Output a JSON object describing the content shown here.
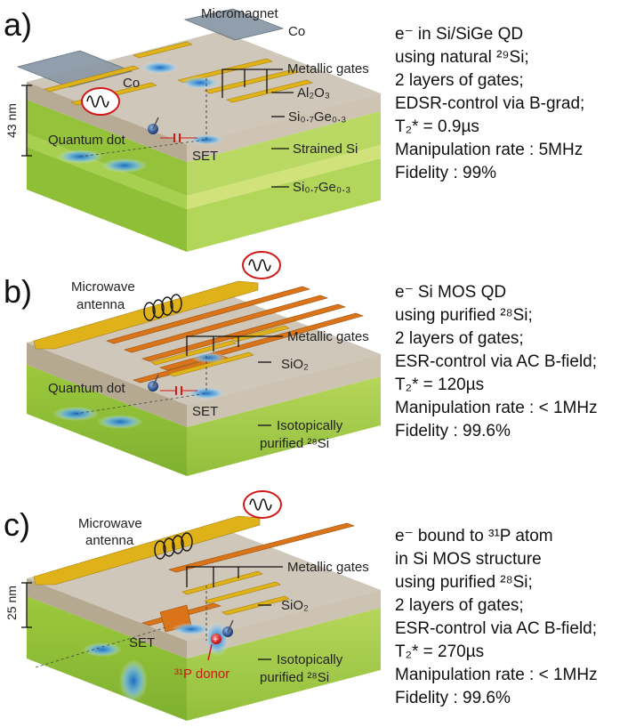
{
  "panels": {
    "a": {
      "letter": "a)",
      "labels": {
        "micromagnet": "Micromagnet",
        "co_right": "Co",
        "co_left": "Co",
        "metallic_gates": "Metallic gates",
        "al2o3": "Al₂O₃",
        "sige_top": "Si₀.₇Ge₀.₃",
        "strained_si": "Strained Si",
        "sige_bottom": "Si₀.₇Ge₀.₃",
        "quantum_dot": "Quantum dot",
        "set": "SET",
        "thickness": "43 nm"
      },
      "desc": [
        "e⁻ in Si/SiGe QD",
        "using natural ²⁹Si;",
        "2 layers of gates;",
        "EDSR-control via B-grad;",
        "T₂* = 0.9µs",
        "Manipulation rate : 5MHz",
        "Fidelity : 99%"
      ]
    },
    "b": {
      "letter": "b)",
      "labels": {
        "microwave": "Microwave",
        "antenna": "antenna",
        "metallic_gates": "Metallic gates",
        "sio2": "SiO₂",
        "quantum_dot": "Quantum dot",
        "set": "SET",
        "isotopically": "Isotopically",
        "purified": "purified ²⁸Si"
      },
      "desc": [
        "e⁻ Si MOS QD",
        "using purified ²⁸Si;",
        "2 layers of gates;",
        "ESR-control via AC B-field;",
        "T₂* = 120µs",
        "Manipulation rate : < 1MHz",
        "Fidelity : 99.6%"
      ]
    },
    "c": {
      "letter": "c)",
      "labels": {
        "microwave": "Microwave",
        "antenna": "antenna",
        "metallic_gates": "Metallic gates",
        "sio2": "SiO₂",
        "set": "SET",
        "p_donor": "³¹P donor",
        "isotopically": "Isotopically",
        "purified": "purified ²⁸Si",
        "thickness": "25 nm"
      },
      "desc": [
        "e⁻  bound to ³¹P atom",
        "in Si MOS structure",
        "using purified ²⁸Si;",
        "2 layers of gates;",
        "ESR-control via AC B-field;",
        "T₂* = 270µs",
        "Manipulation rate : < 1MHz",
        "Fidelity : 99.6%"
      ]
    }
  },
  "colors": {
    "green_layer": "#a9cf45",
    "oxide_layer": "#b9aa98",
    "gold_gate": "#e0b21a",
    "orange_gate": "#d9741a",
    "red_outline": "#d01818"
  }
}
